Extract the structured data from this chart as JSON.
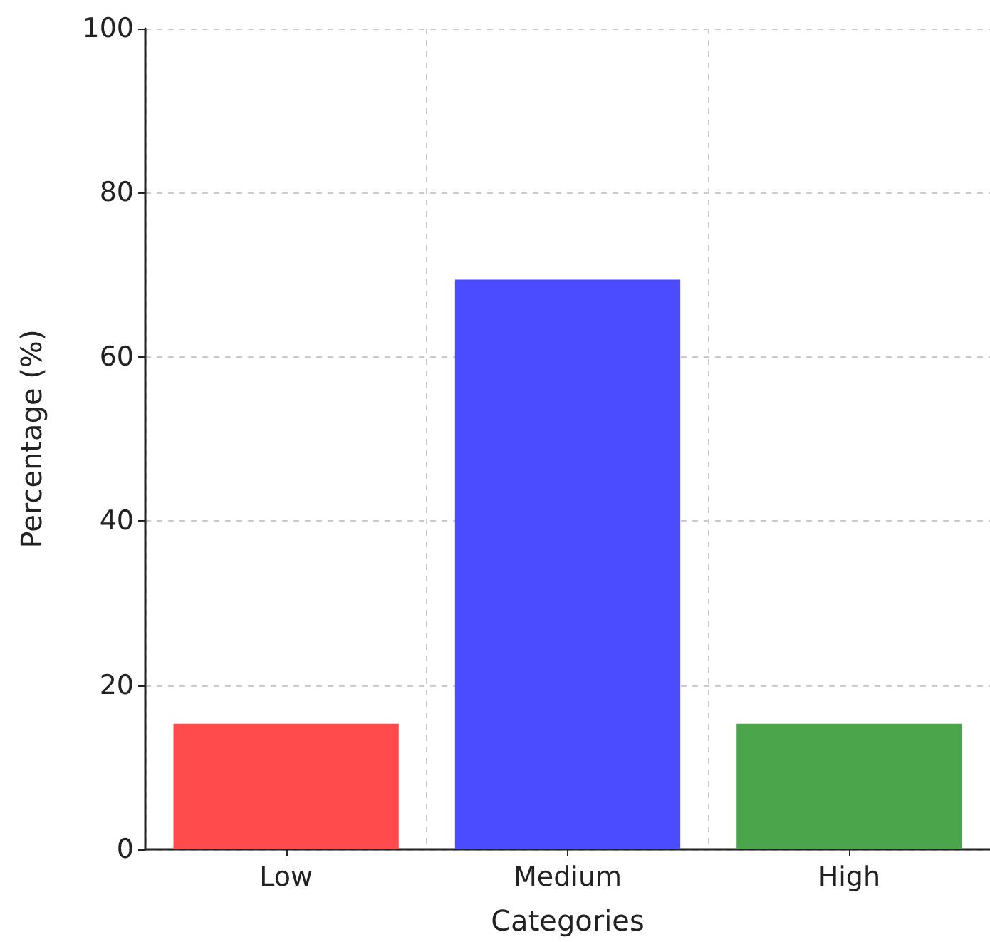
{
  "chart_data": {
    "type": "bar",
    "xlabel": "Categories",
    "ylabel": "Percentage (%)",
    "categories": [
      "Low",
      "Medium",
      "High"
    ],
    "values": [
      15.3,
      69.4,
      15.3
    ],
    "colors": [
      "#ff4b4b",
      "#4b4bff",
      "#4ba54b"
    ],
    "ylim": [
      0,
      100
    ],
    "yticks": [
      0,
      20,
      40,
      60,
      80,
      100
    ],
    "grid": true
  }
}
